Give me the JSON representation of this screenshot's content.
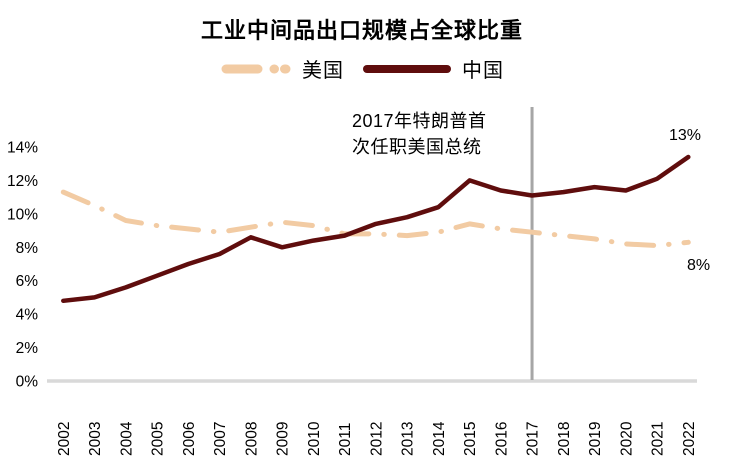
{
  "title": "工业中间品出口规模占全球比重",
  "legend": {
    "us": {
      "label": "美国",
      "color": "#F2CBA3",
      "style": "dash-dot"
    },
    "china": {
      "label": "中国",
      "color": "#5F0D0D",
      "style": "solid"
    }
  },
  "annotation": {
    "line1": "2017年特朗普首",
    "line2": "次任职美国总统",
    "marker_year": 2017,
    "marker_color": "#A6A6A6"
  },
  "end_labels": {
    "china": "13%",
    "us": "8%"
  },
  "colors": {
    "us_line": "#F2CBA3",
    "china_line": "#5F0D0D",
    "axis_line": "#D9D9D9",
    "text": "#000000"
  },
  "chart_data": {
    "type": "line",
    "x": [
      2002,
      2003,
      2004,
      2005,
      2006,
      2007,
      2008,
      2009,
      2010,
      2011,
      2012,
      2013,
      2014,
      2015,
      2016,
      2017,
      2018,
      2019,
      2020,
      2021,
      2022
    ],
    "series": [
      {
        "name": "美国",
        "color": "#F2CBA3",
        "dashed": true,
        "values": [
          11.3,
          10.5,
          9.6,
          9.3,
          9.1,
          8.9,
          9.2,
          9.5,
          9.3,
          8.8,
          8.8,
          8.7,
          8.9,
          9.4,
          9.1,
          8.9,
          8.7,
          8.5,
          8.2,
          8.1,
          8.3
        ]
      },
      {
        "name": "中国",
        "color": "#5F0D0D",
        "dashed": false,
        "values": [
          4.8,
          5.0,
          5.6,
          6.3,
          7.0,
          7.6,
          8.6,
          8.0,
          8.4,
          8.7,
          9.4,
          9.8,
          10.4,
          12.0,
          11.4,
          11.1,
          11.3,
          11.6,
          11.4,
          12.1,
          13.4
        ]
      }
    ],
    "y_ticks": [
      {
        "v": 0,
        "label": "0%"
      },
      {
        "v": 2,
        "label": "2%"
      },
      {
        "v": 4,
        "label": "4%"
      },
      {
        "v": 6,
        "label": "6%"
      },
      {
        "v": 8,
        "label": "8%"
      },
      {
        "v": 10,
        "label": "10%"
      },
      {
        "v": 12,
        "label": "12%"
      },
      {
        "v": 14,
        "label": "14%"
      }
    ],
    "ylim": [
      0,
      14
    ],
    "grid": false,
    "legend_position": "top",
    "title": "工业中间品出口规模占全球比重",
    "vline_year": 2017,
    "data_labels": {
      "中国_2022": "13%",
      "美国_2022": "8%"
    }
  }
}
